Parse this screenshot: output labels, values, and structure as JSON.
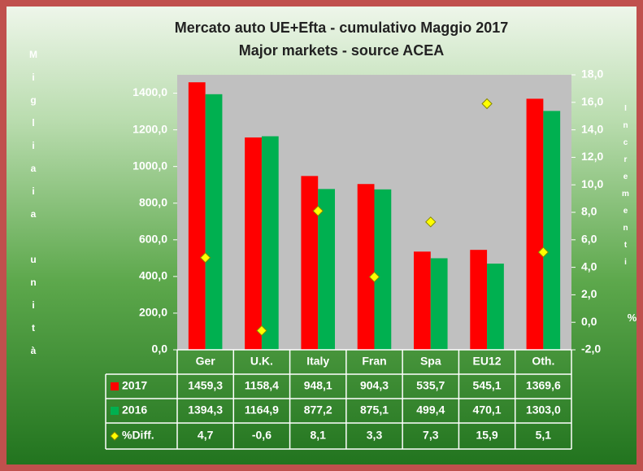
{
  "chart_data": {
    "type": "bar",
    "title": "Mercato auto UE+Efta - cumulativo Maggio 2017",
    "subtitle": "Major markets - source ACEA",
    "y_label": "Migliaia unità",
    "y2_label": "Incrementi",
    "y2_unit": "%",
    "categories": [
      "Ger",
      "U.K.",
      "Italy",
      "Fran",
      "Spa",
      "EU12",
      "Oth."
    ],
    "series": [
      {
        "name": "2017",
        "color": "#ff0000",
        "values": [
          1459.3,
          1158.4,
          948.1,
          904.3,
          535.7,
          545.1,
          1369.6
        ],
        "value_labels": [
          "1459,3",
          "1158,4",
          "948,1",
          "904,3",
          "535,7",
          "545,1",
          "1369,6"
        ]
      },
      {
        "name": "2016",
        "color": "#00b050",
        "values": [
          1394.3,
          1164.9,
          877.2,
          875.1,
          499.4,
          470.1,
          1303.0
        ],
        "value_labels": [
          "1394,3",
          "1164,9",
          "877,2",
          "875,1",
          "499,4",
          "470,1",
          "1303,0"
        ]
      },
      {
        "name": "%Diff.",
        "color": "#ffff00",
        "type": "scatter",
        "axis": "y2",
        "values": [
          4.7,
          -0.6,
          8.1,
          3.3,
          7.3,
          15.9,
          5.1
        ],
        "value_labels": [
          "4,7",
          "-0,6",
          "8,1",
          "3,3",
          "7,3",
          "15,9",
          "5,1"
        ]
      }
    ],
    "ylim": [
      0,
      1500
    ],
    "yticks": [
      {
        "value": 0,
        "label": "0,0"
      },
      {
        "value": 200,
        "label": "200,0"
      },
      {
        "value": 400,
        "label": "400,0"
      },
      {
        "value": 600,
        "label": "600,0"
      },
      {
        "value": 800,
        "label": "800,0"
      },
      {
        "value": 1000,
        "label": "1000,0"
      },
      {
        "value": 1200,
        "label": "1200,0"
      },
      {
        "value": 1400,
        "label": "1400,0"
      }
    ],
    "y2lim": [
      -2,
      18
    ],
    "y2ticks": [
      {
        "value": -2,
        "label": "-2,0"
      },
      {
        "value": 0,
        "label": "0,0"
      },
      {
        "value": 2,
        "label": "2,0"
      },
      {
        "value": 4,
        "label": "4,0"
      },
      {
        "value": 6,
        "label": "6,0"
      },
      {
        "value": 8,
        "label": "8,0"
      },
      {
        "value": 10,
        "label": "10,0"
      },
      {
        "value": 12,
        "label": "12,0"
      },
      {
        "value": 14,
        "label": "14,0"
      },
      {
        "value": 16,
        "label": "16,0"
      },
      {
        "value": 18,
        "label": "18,0"
      }
    ],
    "plot_background": "#c0c0c0",
    "data_table": true
  }
}
